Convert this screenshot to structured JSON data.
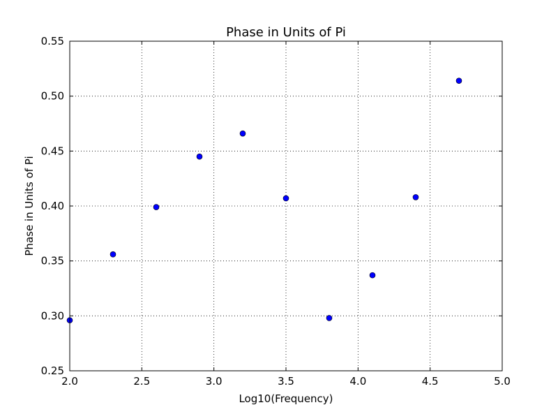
{
  "chart_data": {
    "type": "scatter",
    "title": "Phase in Units of Pi",
    "xlabel": "Log10(Frequency)",
    "ylabel": "Phase in Units of Pi",
    "xlim": [
      2.0,
      5.0
    ],
    "ylim": [
      0.25,
      0.55
    ],
    "xticks": [
      "2.0",
      "2.5",
      "3.0",
      "3.5",
      "4.0",
      "4.5",
      "5.0"
    ],
    "yticks": [
      "0.25",
      "0.30",
      "0.35",
      "0.40",
      "0.45",
      "0.50",
      "0.55"
    ],
    "grid": true,
    "marker_color": "#0000ff",
    "marker_edge_color": "#000000",
    "series": [
      {
        "x": [
          2.0,
          2.3,
          2.6,
          2.9,
          3.2,
          3.5,
          3.8,
          4.1,
          4.4,
          4.7
        ],
        "y": [
          0.296,
          0.356,
          0.399,
          0.445,
          0.466,
          0.407,
          0.298,
          0.337,
          0.408,
          0.514
        ]
      }
    ]
  }
}
